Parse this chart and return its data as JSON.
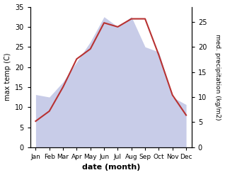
{
  "months": [
    "Jan",
    "Feb",
    "Mar",
    "Apr",
    "May",
    "Jun",
    "Jul",
    "Aug",
    "Sep",
    "Oct",
    "Nov",
    "Dec"
  ],
  "temperature": [
    6.5,
    9.0,
    15.0,
    22.0,
    24.5,
    31.0,
    30.0,
    32.0,
    32.0,
    23.0,
    13.0,
    8.0
  ],
  "precipitation": [
    10.5,
    10.0,
    13.0,
    17.0,
    21.0,
    26.0,
    24.0,
    26.0,
    20.0,
    19.0,
    10.0,
    8.5
  ],
  "temp_color": "#b83232",
  "precip_fill_color": "#c8cce8",
  "temp_ylim": [
    0,
    35
  ],
  "precip_ylim": [
    0,
    28
  ],
  "temp_yticks": [
    0,
    5,
    10,
    15,
    20,
    25,
    30,
    35
  ],
  "precip_yticks": [
    0,
    5,
    10,
    15,
    20,
    25
  ],
  "ylabel_left": "max temp (C)",
  "ylabel_right": "med. precipitation (kg/m2)",
  "xlabel": "date (month)",
  "background_color": "#ffffff",
  "fig_width": 3.18,
  "fig_height": 2.47,
  "dpi": 100
}
